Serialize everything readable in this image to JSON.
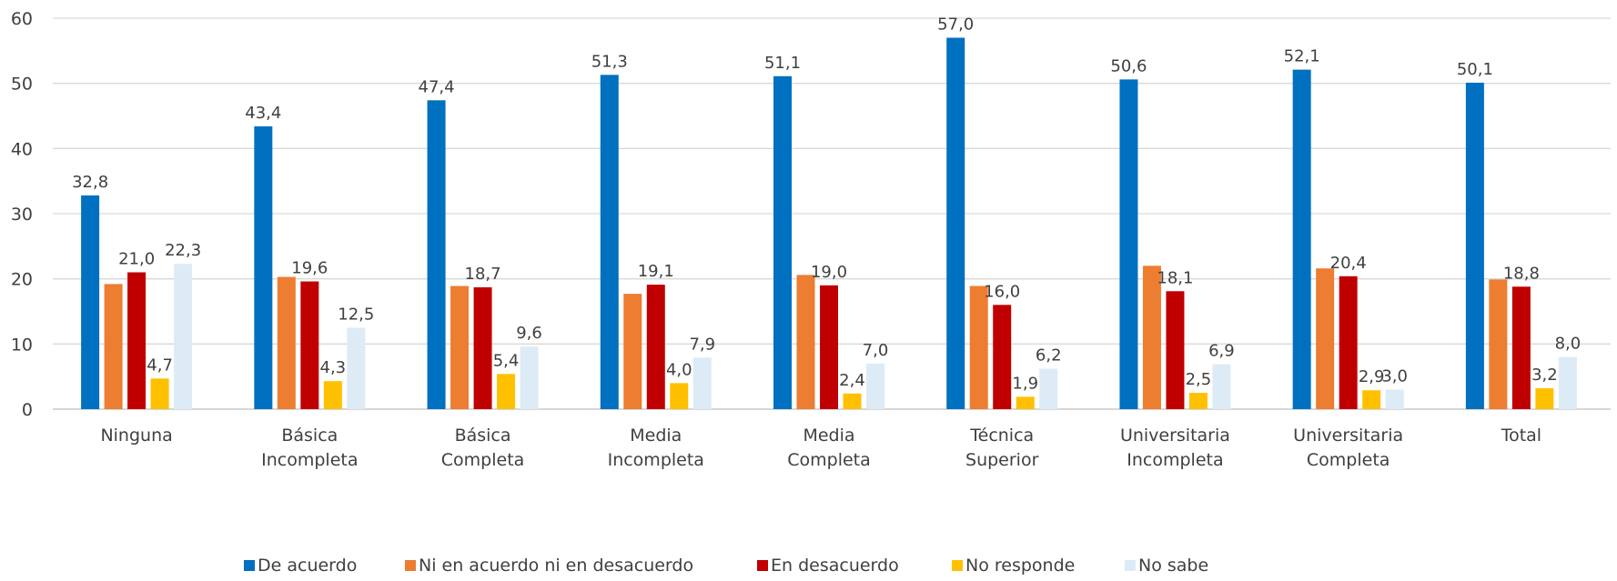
{
  "chart_data": {
    "type": "bar",
    "categories": [
      [
        "Ninguna"
      ],
      [
        "Básica",
        "Incompleta"
      ],
      [
        "Básica",
        "Completa"
      ],
      [
        "Media",
        "Incompleta"
      ],
      [
        "Media",
        "Completa"
      ],
      [
        "Técnica",
        "Superior"
      ],
      [
        "Universitaria",
        "Incompleta"
      ],
      [
        "Universitaria",
        "Completa"
      ],
      [
        "Total"
      ]
    ],
    "series": [
      {
        "name": "De acuerdo",
        "color": "#0070C0",
        "values": [
          32.8,
          43.4,
          47.4,
          51.3,
          51.1,
          57.0,
          50.6,
          52.1,
          50.1
        ],
        "labels": [
          "32,8",
          "43,4",
          "47,4",
          "51,3",
          "51,1",
          "57,0",
          "50,6",
          "52,1",
          "50,1"
        ]
      },
      {
        "name": "Ni en acuerdo ni en desacuerdo",
        "color": "#ED7D31",
        "values": [
          19.2,
          20.3,
          18.9,
          17.7,
          20.6,
          18.9,
          22.0,
          21.6,
          19.9
        ],
        "labels": null
      },
      {
        "name": "En desacuerdo",
        "color": "#C00000",
        "values": [
          21.0,
          19.6,
          18.7,
          19.1,
          19.0,
          16.0,
          18.1,
          20.4,
          18.8
        ],
        "labels": [
          "21,0",
          "19,6",
          "18,7",
          "19,1",
          "19,0",
          "16,0",
          "18,1",
          "20,4",
          "18,8"
        ]
      },
      {
        "name": "No responde",
        "color": "#FFC000",
        "values": [
          4.7,
          4.3,
          5.4,
          4.0,
          2.4,
          1.9,
          2.5,
          2.9,
          3.2
        ],
        "labels": [
          "4,7",
          "4,3",
          "5,4",
          "4,0",
          "2,4",
          "1,9",
          "2,5",
          "2,9",
          "3,2"
        ]
      },
      {
        "name": "No sabe",
        "color": "#DDEBF7",
        "values": [
          22.3,
          12.5,
          9.6,
          7.9,
          7.0,
          6.2,
          6.9,
          3.0,
          8.0
        ],
        "labels": [
          "22,3",
          "12,5",
          "9,6",
          "7,9",
          "7,0",
          "6,2",
          "6,9",
          "3,0",
          "8,0"
        ]
      }
    ],
    "y_ticks": [
      "0",
      "10",
      "20",
      "30",
      "40",
      "50",
      "60"
    ],
    "ylim": [
      0,
      60
    ],
    "grid": true,
    "legend_position": "bottom",
    "title": "",
    "xlabel": "",
    "ylabel": ""
  }
}
